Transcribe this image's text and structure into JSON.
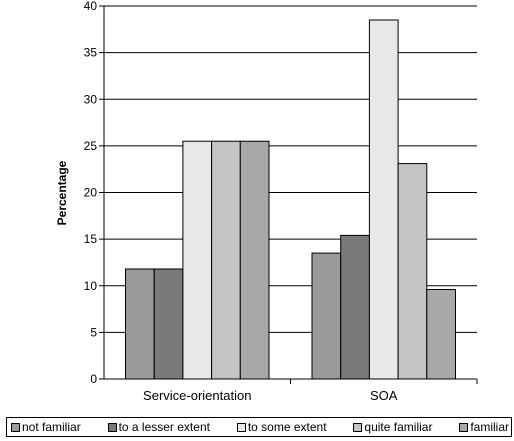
{
  "chart_data": {
    "type": "bar",
    "categories": [
      "Service-orientation",
      "SOA"
    ],
    "series": [
      {
        "name": "not familiar",
        "values": [
          11.8,
          13.5
        ],
        "color": "#9a9a9a"
      },
      {
        "name": "to a lesser extent",
        "values": [
          11.8,
          15.4
        ],
        "color": "#7a7a7a"
      },
      {
        "name": "to some extent",
        "values": [
          25.5,
          38.5
        ],
        "color": "#e8e8e8"
      },
      {
        "name": "quite familiar",
        "values": [
          25.5,
          23.1
        ],
        "color": "#c4c4c4"
      },
      {
        "name": "familiar",
        "values": [
          25.5,
          9.6
        ],
        "color": "#a8a8a8"
      }
    ],
    "ylabel": "Percentage",
    "xlabel": "",
    "ylim": [
      0,
      40
    ],
    "yticks": [
      0,
      5,
      10,
      15,
      20,
      25,
      30,
      35,
      40
    ],
    "grid": true,
    "legend_position": "bottom"
  }
}
